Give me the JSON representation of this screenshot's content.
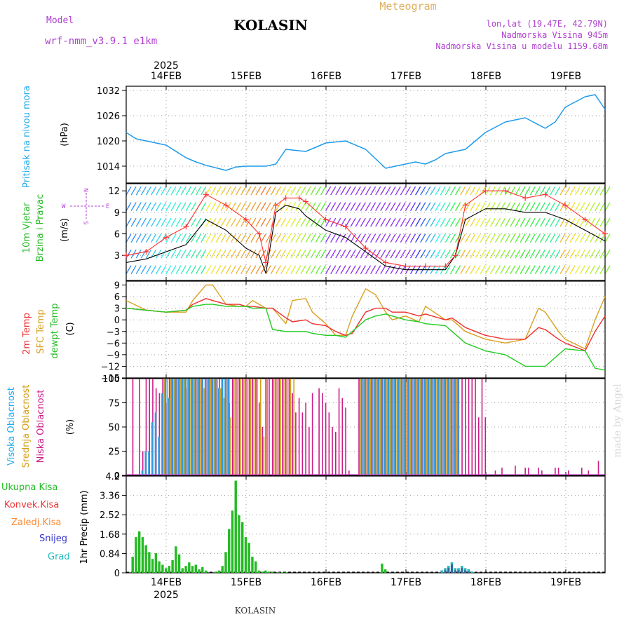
{
  "header": {
    "model_label": "Model",
    "model_name": "wrf-nmm_v3.9.1 e1km",
    "station": "KOLASIN",
    "title": "Meteogram",
    "coords": "lon,lat (19.47E, 42.79N)",
    "elevation": "Nadmorska Visina 945m",
    "model_elevation": "Nadmorska Visina u modelu 1159.68m",
    "footer_station": "KOLASIN",
    "watermark": "made by Angel"
  },
  "time_axis": {
    "year": "2025",
    "days": [
      "14FEB",
      "15FEB",
      "16FEB",
      "17FEB",
      "18FEB",
      "19FEB"
    ],
    "range_hours": [
      0,
      144
    ]
  },
  "colors": {
    "pressure": "#1e9bea",
    "temp2m": "#ef2f2f",
    "sfc_temp": "#d8a020",
    "dewpt": "#22cc22",
    "cloud_high": "#3399dd",
    "cloud_mid": "#d4a017",
    "cloud_low": "#cc1c88",
    "precip_total": "#22bb22",
    "precip_conv": "#ee3333",
    "precip_frozen": "#ff8833",
    "snow": "#3333cc",
    "graupel": "#22bbbb",
    "wind_gust": "#ff3030",
    "wind_speed": "#000000"
  },
  "chart_data": [
    {
      "type": "line",
      "name": "pressure",
      "labels": [
        "Pritisak na nivou mora",
        "(hPa)"
      ],
      "yticks": [
        1014,
        1020,
        1026,
        1032
      ],
      "ylim": [
        1010,
        1033
      ],
      "x": [
        0,
        3,
        6,
        12,
        18,
        21,
        24,
        30,
        33,
        36,
        42,
        45,
        48,
        54,
        57,
        60,
        66,
        72,
        78,
        84,
        87,
        90,
        93,
        96,
        102,
        108,
        114,
        120,
        126,
        129,
        132,
        138,
        141,
        144
      ],
      "series": [
        {
          "values": [
            1022,
            1020.5,
            1020,
            1019,
            1016,
            1015,
            1014.2,
            1013,
            1013.8,
            1014,
            1014,
            1014.5,
            1018,
            1017.5,
            1018.5,
            1019.5,
            1020,
            1018,
            1013.5,
            1014.5,
            1015,
            1014.5,
            1015.5,
            1017,
            1018,
            1022,
            1024.5,
            1025.5,
            1023,
            1024.5,
            1028,
            1030.5,
            1031,
            1027.5
          ]
        }
      ]
    },
    {
      "type": "line",
      "name": "wind",
      "labels": [
        "10m Vjetar",
        "Brzina i Pravac",
        "(m/s)"
      ],
      "direction_legend": [
        "N",
        "S",
        "W",
        "E"
      ],
      "yticks": [
        3,
        6,
        9,
        12
      ],
      "ylim": [
        -0.5,
        13
      ],
      "x": [
        0,
        6,
        12,
        18,
        24,
        30,
        36,
        40,
        42,
        45,
        48,
        52,
        54,
        60,
        66,
        72,
        78,
        84,
        90,
        96,
        99,
        102,
        108,
        114,
        120,
        126,
        132,
        138,
        144
      ],
      "series": [
        {
          "name": "speed",
          "values": [
            2,
            2.5,
            3.5,
            4.5,
            8,
            6.5,
            4,
            3,
            0.5,
            9,
            10,
            9.5,
            8.5,
            6.5,
            5.5,
            3.5,
            1.5,
            1,
            1,
            1,
            3,
            8,
            9.5,
            9.5,
            9,
            9,
            8,
            6.5,
            5
          ]
        },
        {
          "name": "gust",
          "values": [
            3,
            3.5,
            5.5,
            7,
            11.5,
            10,
            8,
            6,
            2,
            10,
            11,
            11,
            10.5,
            8,
            7,
            4,
            2,
            1.5,
            1.5,
            1.5,
            3,
            10,
            12,
            12,
            11,
            11.5,
            10,
            8,
            6
          ]
        }
      ]
    },
    {
      "type": "line",
      "name": "temperature",
      "labels": [
        "2m Temp",
        "SFC Temp",
        "dewpt Temp",
        "(C)"
      ],
      "yticks": [
        -15,
        -12,
        -9,
        -6,
        -3,
        0,
        3,
        6,
        9
      ],
      "ylim": [
        -15,
        10
      ],
      "x": [
        0,
        6,
        12,
        18,
        20,
        24,
        26,
        30,
        34,
        36,
        38,
        42,
        44,
        48,
        50,
        54,
        56,
        60,
        63,
        66,
        68,
        72,
        75,
        78,
        80,
        84,
        88,
        90,
        96,
        98,
        102,
        108,
        114,
        120,
        124,
        126,
        130,
        132,
        138,
        141,
        144
      ],
      "series": [
        {
          "name": "2m Temp",
          "values": [
            3,
            2.5,
            2,
            2.5,
            4,
            5.5,
            5,
            4,
            4,
            3.5,
            3.5,
            3,
            3,
            0.5,
            -0.5,
            0,
            -1,
            -1.5,
            -3,
            -4,
            -3.5,
            2,
            3,
            3,
            2,
            2,
            1,
            1.5,
            0,
            0.5,
            -2,
            -4,
            -5,
            -5,
            -2,
            -2.5,
            -5,
            -6,
            -8,
            -3,
            1
          ]
        },
        {
          "name": "SFC Temp",
          "values": [
            5,
            2.5,
            2,
            2,
            5,
            9,
            9,
            4,
            3.5,
            3.5,
            5,
            3,
            3,
            -1,
            5,
            5.5,
            2,
            -1,
            -4,
            -4,
            1,
            8,
            6.5,
            2,
            0,
            1,
            -0.5,
            3.5,
            0,
            0,
            -3,
            -5,
            -6,
            -5,
            3,
            2,
            -3,
            -5,
            -7.5,
            0,
            6
          ]
        },
        {
          "name": "dewpt Temp",
          "values": [
            3,
            2.5,
            2,
            2.5,
            3.5,
            4,
            4,
            3.5,
            3.5,
            3.5,
            3,
            3,
            -2.5,
            -3,
            -3,
            -3,
            -3.5,
            -4,
            -4,
            -4.5,
            -3,
            0,
            1,
            1.5,
            1,
            0,
            -0.5,
            -1,
            -1.5,
            -3,
            -6,
            -8,
            -9,
            -12,
            -12,
            -12,
            -9,
            -7.5,
            -8,
            -12.5,
            -13
          ]
        }
      ]
    },
    {
      "type": "bar",
      "name": "cloud",
      "labels": [
        "Visoka Oblacnost",
        "Srednja Oblacnost",
        "Niska Oblacnost",
        "(%)"
      ],
      "yticks": [
        0,
        25,
        50,
        75,
        100
      ],
      "ylim": [
        0,
        100
      ],
      "x": [
        2,
        4,
        5,
        6,
        7,
        8,
        9,
        10,
        11,
        12,
        13,
        14,
        15,
        16,
        17,
        18,
        19,
        20,
        21,
        22,
        23,
        24,
        25,
        26,
        27,
        28,
        29,
        30,
        31,
        32,
        33,
        34,
        35,
        36,
        37,
        38,
        39,
        40,
        41,
        42,
        43,
        44,
        45,
        46,
        47,
        48,
        49,
        50,
        51,
        52,
        53,
        54,
        55,
        56,
        58,
        59,
        60,
        61,
        62,
        63,
        64,
        65,
        66,
        67,
        70,
        71,
        72,
        73,
        74,
        75,
        76,
        77,
        78,
        79,
        80,
        81,
        82,
        83,
        84,
        85,
        86,
        87,
        88,
        89,
        90,
        91,
        92,
        93,
        94,
        95,
        96,
        97,
        98,
        99,
        100,
        101,
        102,
        103,
        104,
        105,
        106,
        107,
        108,
        111,
        113,
        117,
        120,
        121,
        124,
        125,
        129,
        130,
        133,
        137,
        139,
        142
      ],
      "series": [
        {
          "name": "Niska Oblacnost",
          "values": [
            100,
            100,
            25,
            100,
            100,
            100,
            90,
            85,
            100,
            75,
            100,
            100,
            100,
            100,
            100,
            90,
            100,
            100,
            100,
            100,
            100,
            100,
            100,
            100,
            100,
            100,
            100,
            100,
            75,
            100,
            100,
            100,
            100,
            100,
            100,
            100,
            100,
            75,
            50,
            100,
            100,
            100,
            100,
            100,
            100,
            100,
            100,
            85,
            65,
            80,
            65,
            75,
            50,
            85,
            90,
            85,
            75,
            65,
            50,
            45,
            90,
            80,
            70,
            5,
            100,
            100,
            100,
            100,
            100,
            100,
            100,
            100,
            100,
            100,
            100,
            100,
            100,
            100,
            100,
            100,
            100,
            100,
            100,
            100,
            100,
            100,
            100,
            100,
            100,
            100,
            100,
            100,
            100,
            100,
            100,
            100,
            100,
            100,
            100,
            100,
            60,
            100,
            60,
            5,
            8,
            10,
            8,
            8,
            8,
            5,
            8,
            8,
            5,
            8,
            5,
            15
          ]
        },
        {
          "name": "Srednja Oblacnost",
          "values": [
            0,
            0,
            0,
            0,
            0,
            0,
            0,
            0,
            100,
            100,
            100,
            100,
            100,
            100,
            100,
            100,
            100,
            100,
            100,
            100,
            90,
            100,
            100,
            100,
            100,
            90,
            80,
            100,
            60,
            100,
            100,
            100,
            100,
            100,
            100,
            100,
            100,
            100,
            40,
            100,
            0,
            100,
            100,
            100,
            100,
            100,
            100,
            100,
            0,
            0,
            0,
            0,
            0,
            0,
            0,
            0,
            0,
            0,
            0,
            0,
            0,
            0,
            0,
            0,
            100,
            100,
            100,
            100,
            100,
            100,
            100,
            100,
            100,
            100,
            100,
            100,
            100,
            100,
            100,
            100,
            100,
            100,
            100,
            100,
            100,
            100,
            100,
            100,
            100,
            100,
            100,
            100,
            100,
            100,
            0,
            0,
            0,
            0,
            0,
            0,
            0,
            0,
            0,
            0,
            0,
            0,
            0,
            0,
            0,
            0,
            0,
            0,
            0,
            0,
            0,
            0
          ]
        },
        {
          "name": "Visoka Oblacnost",
          "values": [
            0,
            5,
            25,
            25,
            55,
            65,
            40,
            85,
            100,
            80,
            100,
            100,
            100,
            100,
            100,
            100,
            100,
            100,
            100,
            100,
            100,
            100,
            100,
            100,
            90,
            100,
            100,
            100,
            0,
            0,
            0,
            0,
            0,
            0,
            0,
            0,
            0,
            0,
            0,
            0,
            0,
            0,
            0,
            0,
            0,
            0,
            0,
            0,
            0,
            0,
            0,
            0,
            0,
            0,
            0,
            0,
            0,
            0,
            0,
            0,
            0,
            0,
            0,
            0,
            100,
            100,
            100,
            100,
            100,
            100,
            100,
            100,
            100,
            100,
            100,
            100,
            100,
            100,
            100,
            100,
            100,
            100,
            100,
            100,
            100,
            100,
            100,
            100,
            100,
            100,
            100,
            100,
            100,
            100,
            0,
            0,
            0,
            0,
            0,
            0,
            0,
            0,
            0,
            0,
            0,
            0,
            0,
            0,
            0,
            0,
            0,
            0,
            0,
            0,
            0,
            0
          ]
        }
      ]
    },
    {
      "type": "bar",
      "name": "precipitation",
      "labels": [
        "Ukupna Kisa",
        "Konvek.Kisa",
        "Zaledj.Kisa",
        "Snijeg",
        "Grad",
        "1hr Precip (mm)"
      ],
      "yticks": [
        0,
        0.84,
        1.68,
        2.52,
        3.36,
        4.2
      ],
      "ylim": [
        0,
        4.2
      ],
      "x": [
        2,
        3,
        4,
        5,
        6,
        7,
        8,
        9,
        10,
        11,
        12,
        13,
        14,
        15,
        16,
        17,
        18,
        19,
        20,
        21,
        22,
        23,
        24,
        27,
        28,
        29,
        30,
        31,
        32,
        33,
        34,
        35,
        36,
        37,
        38,
        39,
        40,
        41,
        42,
        43,
        44,
        46,
        47,
        48,
        77,
        78,
        95,
        96,
        97,
        98,
        99,
        100,
        101,
        102,
        103,
        104
      ],
      "series": [
        {
          "name": "Ukupna Kisa",
          "values": [
            0.7,
            1.55,
            1.8,
            1.55,
            1.2,
            0.9,
            0.6,
            0.85,
            0.5,
            0.35,
            0.2,
            0.3,
            0.55,
            1.15,
            0.8,
            0.2,
            0.3,
            0.45,
            0.3,
            0.35,
            0.15,
            0.25,
            0.1,
            0.05,
            0.1,
            0.3,
            0.9,
            1.9,
            2.7,
            4.0,
            2.5,
            2.2,
            1.55,
            1.3,
            0.7,
            0.5,
            0.1,
            0.05,
            0.1,
            0.05,
            0.05,
            0.02,
            0.02,
            0.02,
            0.4,
            0.15,
            0.1,
            0.2,
            0.3,
            0.45,
            0.2,
            0.2,
            0.3,
            0.2,
            0.15,
            0.05
          ]
        },
        {
          "name": "Snijeg",
          "values": [
            0,
            0,
            0,
            0,
            0,
            0,
            0,
            0,
            0,
            0,
            0,
            0,
            0,
            0,
            0,
            0,
            0,
            0,
            0,
            0,
            0,
            0,
            0,
            0,
            0,
            0,
            0,
            0,
            0,
            0,
            0,
            0,
            0,
            0,
            0,
            0,
            0,
            0,
            0,
            0,
            0,
            0,
            0,
            0,
            0,
            0,
            0.1,
            0.2,
            0.3,
            0.45,
            0.2,
            0.2,
            0.3,
            0.2,
            0.15,
            0.05
          ]
        }
      ]
    }
  ]
}
